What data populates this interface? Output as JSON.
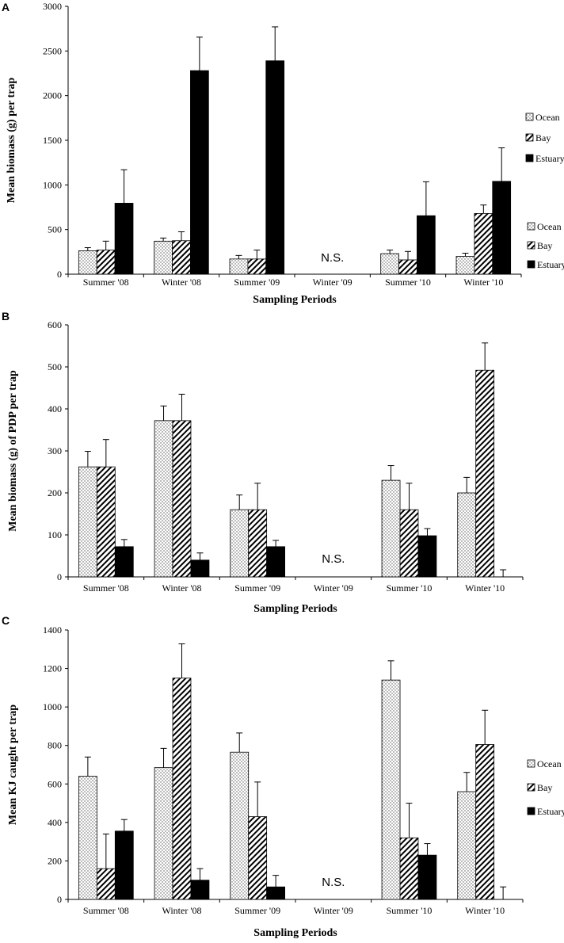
{
  "colors": {
    "estuary": "#000000",
    "axis": "#000000",
    "ocean_bg": "#ffffff",
    "ocean_dot": "#555555",
    "bay_stripe": "#000000"
  },
  "legend_labels": [
    "Ocean",
    "Bay",
    "Estuary"
  ],
  "chart_data": [
    {
      "panel": "A",
      "type": "bar",
      "title": "",
      "xlabel": "Sampling Periods",
      "ylabel": "Mean biomass (g) per trap",
      "ylim": [
        0,
        3000
      ],
      "yticks": [
        0,
        500,
        1000,
        1500,
        2000,
        2500,
        3000
      ],
      "categories": [
        "Summer '08",
        "Winter '08",
        "Summer '09",
        "Winter '09",
        "Summer '10",
        "Winter '10"
      ],
      "series": [
        {
          "name": "Ocean",
          "values": [
            262,
            370,
            170,
            null,
            230,
            200
          ],
          "errors": [
            35,
            35,
            40,
            null,
            40,
            35
          ]
        },
        {
          "name": "Bay",
          "values": [
            270,
            375,
            170,
            null,
            160,
            680
          ],
          "errors": [
            100,
            100,
            100,
            null,
            95,
            95
          ]
        },
        {
          "name": "Estuary",
          "values": [
            795,
            2280,
            2390,
            null,
            655,
            1040
          ],
          "errors": [
            375,
            375,
            380,
            null,
            380,
            375
          ]
        }
      ],
      "annotation": {
        "text": "N.S.",
        "category": "Winter '09"
      }
    },
    {
      "panel": "B",
      "type": "bar",
      "title": "",
      "xlabel": "Sampling Periods",
      "ylabel": "Mean biomass (g) of PDP per trap",
      "ylim": [
        0,
        600
      ],
      "yticks": [
        0,
        100,
        200,
        300,
        400,
        500,
        600
      ],
      "categories": [
        "Summer '08",
        "Winter '08",
        "Summer '09",
        "Winter '09",
        "Summer '10",
        "Winter '10"
      ],
      "series": [
        {
          "name": "Ocean",
          "values": [
            262,
            372,
            160,
            null,
            230,
            200
          ],
          "errors": [
            37,
            35,
            35,
            null,
            35,
            37
          ]
        },
        {
          "name": "Bay",
          "values": [
            262,
            372,
            160,
            null,
            160,
            492
          ],
          "errors": [
            65,
            63,
            63,
            null,
            63,
            65
          ]
        },
        {
          "name": "Estuary",
          "values": [
            72,
            40,
            72,
            null,
            98,
            0
          ],
          "errors": [
            17,
            17,
            15,
            null,
            17,
            17
          ]
        }
      ],
      "annotation": {
        "text": "N.S.",
        "category": "Winter '09"
      }
    },
    {
      "panel": "C",
      "type": "bar",
      "title": "",
      "xlabel": "Sampling Periods",
      "ylabel": "Mean KJ caught per trap",
      "ylim": [
        0,
        1400
      ],
      "yticks": [
        0,
        200,
        400,
        600,
        800,
        1000,
        1200,
        1400
      ],
      "categories": [
        "Summer '08",
        "Winter '08",
        "Summer '09",
        "Winter '09",
        "Summer '10",
        "Winter '10"
      ],
      "series": [
        {
          "name": "Ocean",
          "values": [
            640,
            685,
            765,
            null,
            1140,
            560
          ],
          "errors": [
            100,
            100,
            100,
            null,
            100,
            100
          ]
        },
        {
          "name": "Bay",
          "values": [
            160,
            1150,
            430,
            null,
            320,
            805
          ],
          "errors": [
            180,
            178,
            180,
            null,
            180,
            178
          ]
        },
        {
          "name": "Estuary",
          "values": [
            355,
            100,
            65,
            null,
            230,
            0
          ],
          "errors": [
            60,
            60,
            60,
            null,
            60,
            65
          ]
        }
      ],
      "annotation": {
        "text": "N.S.",
        "category": "Winter '09"
      }
    }
  ]
}
